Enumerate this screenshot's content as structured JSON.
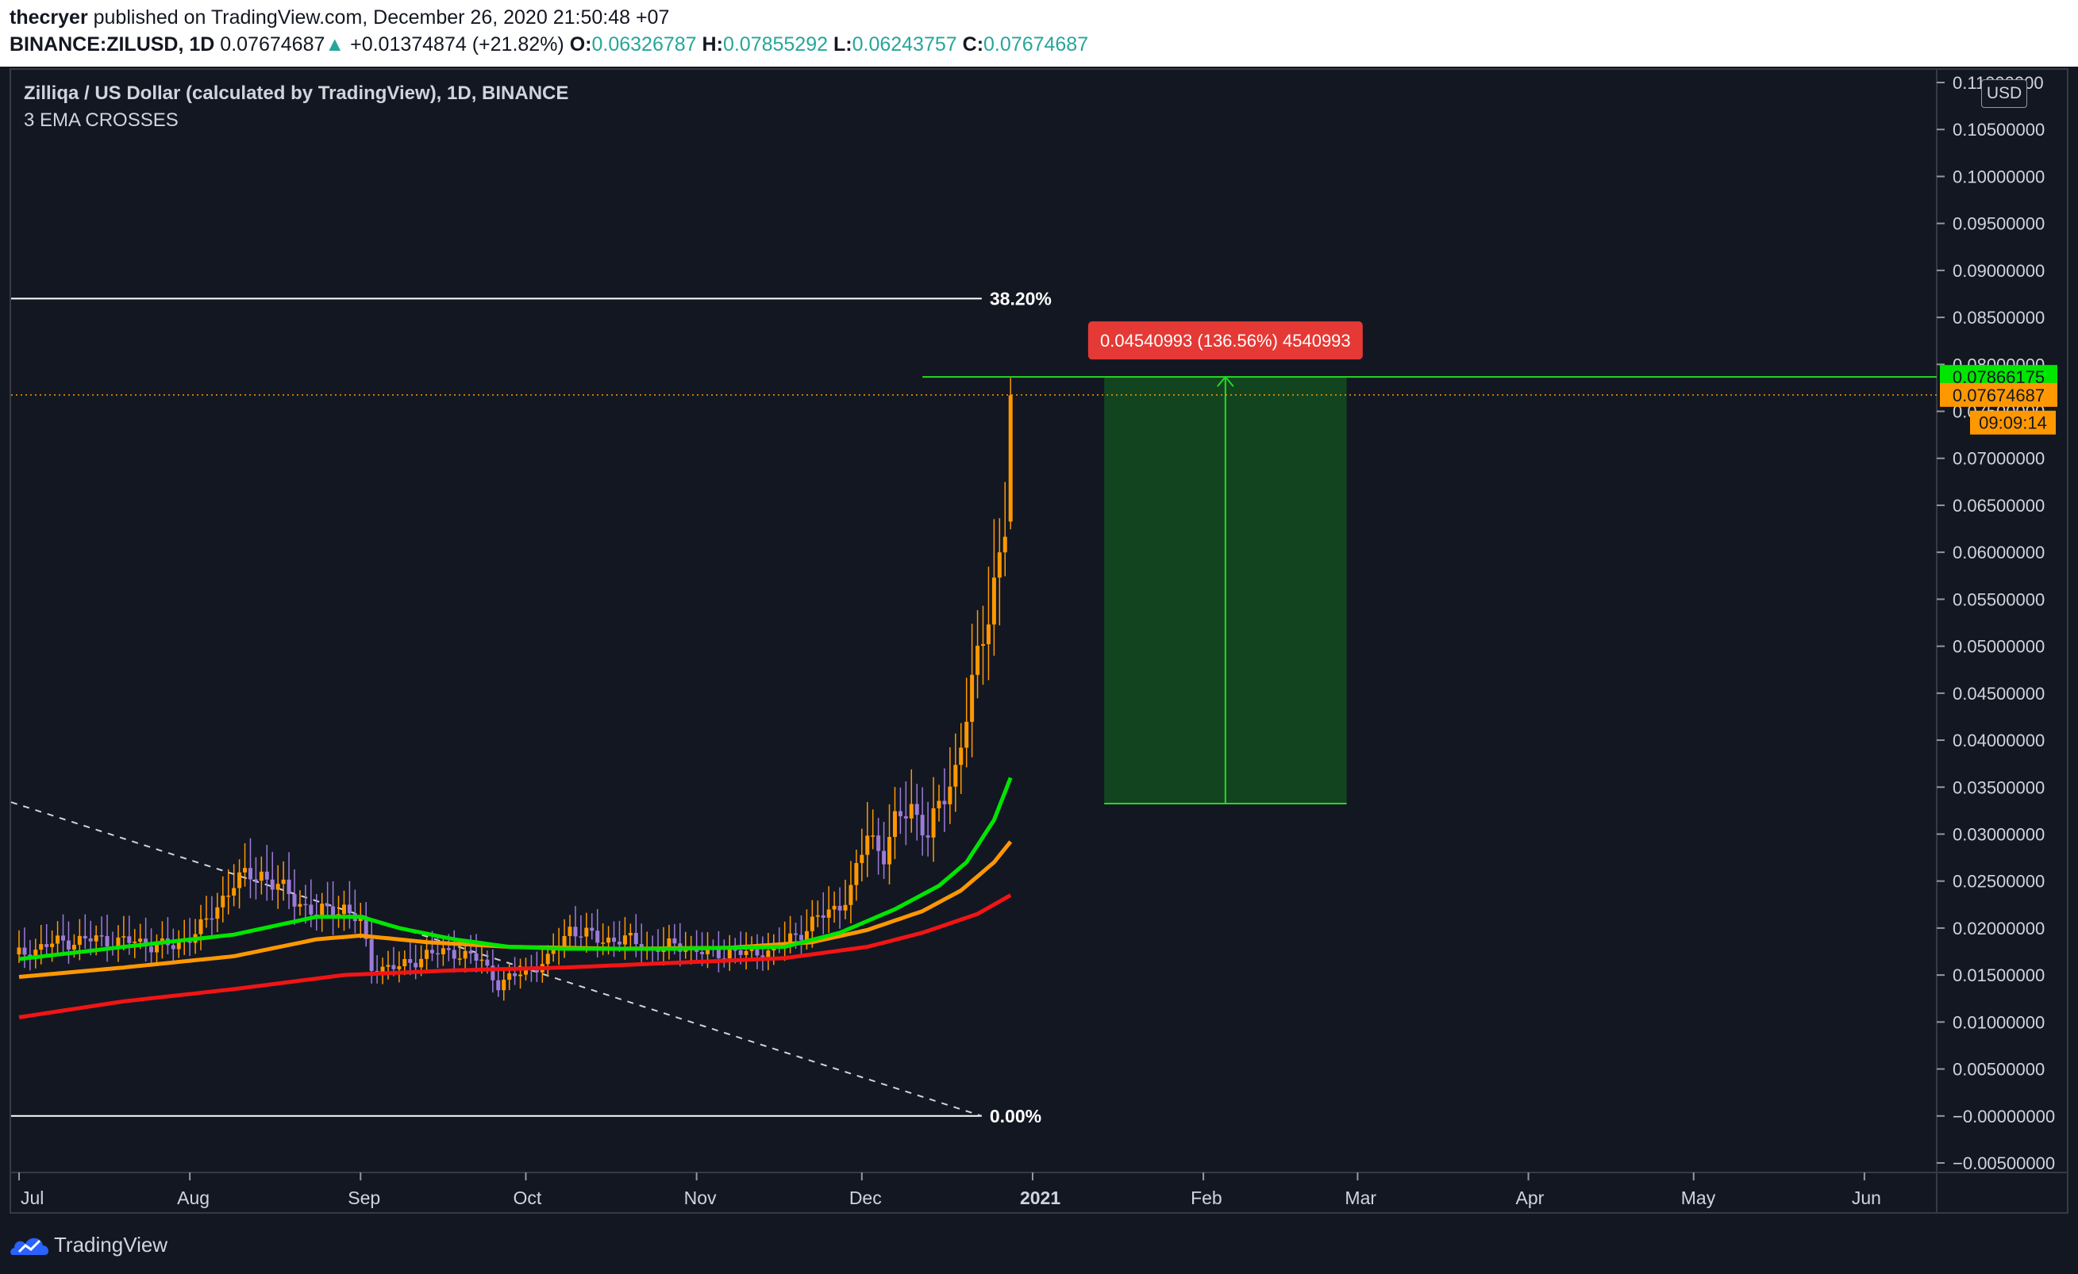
{
  "header": {
    "author": "thecryer",
    "published_text": "published on TradingView.com, December 26, 2020 21:50:48 +07",
    "symbol": "BINANCE:ZILUSD, 1D",
    "last_price": "0.07674687",
    "change_arrow": "▲",
    "change": "+0.01374874 (+21.82%)",
    "open_label": "O:",
    "open": "0.06326787",
    "high_label": "H:",
    "high": "0.07855292",
    "low_label": "L:",
    "low": "0.06243757",
    "close_label": "C:",
    "close": "0.07674687"
  },
  "legend": {
    "title": "Zilliqa / US Dollar (calculated by TradingView), 1D, BINANCE",
    "indicator": "3 EMA CROSSES"
  },
  "price_axis": {
    "currency": "USD",
    "ticks": [
      {
        "label": "0.11000000",
        "value": 0.11
      },
      {
        "label": "0.10500000",
        "value": 0.105
      },
      {
        "label": "0.10000000",
        "value": 0.1
      },
      {
        "label": "0.09500000",
        "value": 0.095
      },
      {
        "label": "0.09000000",
        "value": 0.09
      },
      {
        "label": "0.08500000",
        "value": 0.085
      },
      {
        "label": "0.08000000",
        "value": 0.08
      },
      {
        "label": "0.07500000",
        "value": 0.075
      },
      {
        "label": "0.07000000",
        "value": 0.07
      },
      {
        "label": "0.06500000",
        "value": 0.065
      },
      {
        "label": "0.06000000",
        "value": 0.06
      },
      {
        "label": "0.05500000",
        "value": 0.055
      },
      {
        "label": "0.05000000",
        "value": 0.05
      },
      {
        "label": "0.04500000",
        "value": 0.045
      },
      {
        "label": "0.04000000",
        "value": 0.04
      },
      {
        "label": "0.03500000",
        "value": 0.035
      },
      {
        "label": "0.03000000",
        "value": 0.03
      },
      {
        "label": "0.02500000",
        "value": 0.025
      },
      {
        "label": "0.02000000",
        "value": 0.02
      },
      {
        "label": "0.01500000",
        "value": 0.015
      },
      {
        "label": "0.01000000",
        "value": 0.01
      },
      {
        "label": "0.00500000",
        "value": 0.005
      },
      {
        "label": "−0.00000000",
        "value": 0.0
      },
      {
        "label": "−0.00500000",
        "value": -0.005
      }
    ],
    "badges": [
      {
        "label": "0.07866175",
        "value": 0.07866175,
        "bg": "#00e600",
        "fg": "#131722"
      },
      {
        "label": "0.07674687",
        "value": 0.07674687,
        "bg": "#ff9800",
        "fg": "#131722"
      },
      {
        "label": "09:09:14",
        "value": 0.0738,
        "bg": "#ff9800",
        "fg": "#131722"
      }
    ]
  },
  "time_axis": {
    "ticks": [
      {
        "label": "Jul",
        "day": 1
      },
      {
        "label": "Aug",
        "day": 32
      },
      {
        "label": "Sep",
        "day": 63
      },
      {
        "label": "Oct",
        "day": 93
      },
      {
        "label": "Nov",
        "day": 124
      },
      {
        "label": "Dec",
        "day": 154
      },
      {
        "label": "2021",
        "day": 185,
        "bold": true
      },
      {
        "label": "Feb",
        "day": 216
      },
      {
        "label": "Mar",
        "day": 244
      },
      {
        "label": "Apr",
        "day": 275
      },
      {
        "label": "May",
        "day": 305
      },
      {
        "label": "Jun",
        "day": 336
      }
    ]
  },
  "drawings": {
    "fib_top_label": "38.20%",
    "fib_top_price": 0.087,
    "fib_bottom_label": "0.00%",
    "fib_bottom_price": 0.0,
    "fib_end_day": 170,
    "trendline": {
      "day1": 1,
      "price1": 0.0334,
      "day2": 170,
      "price2": 0.0
    },
    "price_range": {
      "label": "0.04540993 (136.56%) 4540993",
      "start_day": 198,
      "end_day": 242,
      "low": 0.03325182,
      "high": 0.07866175
    },
    "high_line": {
      "price": 0.07866175,
      "start_day": 165
    },
    "last_price_line": 0.07674687
  },
  "colors": {
    "background": "#131722",
    "bull": "#ff9800",
    "bear": "#9c7bd8",
    "ema_fast": "#00e600",
    "ema_mid": "#ff9800",
    "ema_slow": "#f21414",
    "range_fill": "#124a1f",
    "range_stroke": "#26d926",
    "range_label_bg": "#e53935"
  },
  "chart_data": {
    "type": "candlestick",
    "symbol": "BINANCE:ZILUSD",
    "interval": "1D",
    "ylim": [
      -0.005,
      0.11
    ],
    "series_anchors": [
      {
        "name": "close",
        "points": [
          [
            1,
            0.0172
          ],
          [
            8,
            0.0185
          ],
          [
            15,
            0.0188
          ],
          [
            22,
            0.0185
          ],
          [
            29,
            0.018
          ],
          [
            35,
            0.0205
          ],
          [
            40,
            0.025
          ],
          [
            45,
            0.0258
          ],
          [
            50,
            0.0235
          ],
          [
            55,
            0.0215
          ],
          [
            60,
            0.0222
          ],
          [
            63,
            0.0205
          ],
          [
            65,
            0.0158
          ],
          [
            70,
            0.0158
          ],
          [
            75,
            0.0172
          ],
          [
            80,
            0.0175
          ],
          [
            85,
            0.0165
          ],
          [
            88,
            0.014
          ],
          [
            93,
            0.0155
          ],
          [
            97,
            0.0165
          ],
          [
            101,
            0.02
          ],
          [
            106,
            0.0188
          ],
          [
            111,
            0.0188
          ],
          [
            116,
            0.0178
          ],
          [
            121,
            0.0182
          ],
          [
            126,
            0.0172
          ],
          [
            130,
            0.0175
          ],
          [
            134,
            0.0172
          ],
          [
            138,
            0.0178
          ],
          [
            142,
            0.0192
          ],
          [
            146,
            0.021
          ],
          [
            149,
            0.022
          ],
          [
            152,
            0.024
          ],
          [
            155,
            0.03
          ],
          [
            158,
            0.028
          ],
          [
            160,
            0.031
          ],
          [
            163,
            0.033
          ],
          [
            166,
            0.03
          ],
          [
            169,
            0.034
          ],
          [
            171,
            0.037
          ],
          [
            173,
            0.043
          ],
          [
            175,
            0.048
          ],
          [
            177,
            0.054
          ],
          [
            179,
            0.06
          ],
          [
            180,
            0.0632
          ],
          [
            181,
            0.0767
          ]
        ]
      },
      {
        "name": "EMA fast",
        "points": [
          [
            1,
            0.0167
          ],
          [
            20,
            0.018
          ],
          [
            40,
            0.0193
          ],
          [
            55,
            0.0212
          ],
          [
            63,
            0.0212
          ],
          [
            70,
            0.02
          ],
          [
            80,
            0.0188
          ],
          [
            90,
            0.018
          ],
          [
            100,
            0.0178
          ],
          [
            120,
            0.0178
          ],
          [
            140,
            0.018
          ],
          [
            150,
            0.0195
          ],
          [
            160,
            0.022
          ],
          [
            168,
            0.0245
          ],
          [
            173,
            0.027
          ],
          [
            178,
            0.0315
          ],
          [
            181,
            0.036
          ]
        ]
      },
      {
        "name": "EMA mid",
        "points": [
          [
            1,
            0.0148
          ],
          [
            20,
            0.0158
          ],
          [
            40,
            0.017
          ],
          [
            55,
            0.0188
          ],
          [
            63,
            0.0192
          ],
          [
            75,
            0.0185
          ],
          [
            90,
            0.018
          ],
          [
            110,
            0.0178
          ],
          [
            130,
            0.0179
          ],
          [
            145,
            0.0185
          ],
          [
            155,
            0.0198
          ],
          [
            165,
            0.0218
          ],
          [
            172,
            0.024
          ],
          [
            178,
            0.027
          ],
          [
            181,
            0.0292
          ]
        ]
      },
      {
        "name": "EMA slow",
        "points": [
          [
            1,
            0.0105
          ],
          [
            20,
            0.0122
          ],
          [
            40,
            0.0135
          ],
          [
            60,
            0.015
          ],
          [
            80,
            0.0155
          ],
          [
            100,
            0.0158
          ],
          [
            120,
            0.0163
          ],
          [
            140,
            0.0168
          ],
          [
            155,
            0.018
          ],
          [
            165,
            0.0195
          ],
          [
            175,
            0.0215
          ],
          [
            181,
            0.0235
          ]
        ]
      }
    ]
  }
}
